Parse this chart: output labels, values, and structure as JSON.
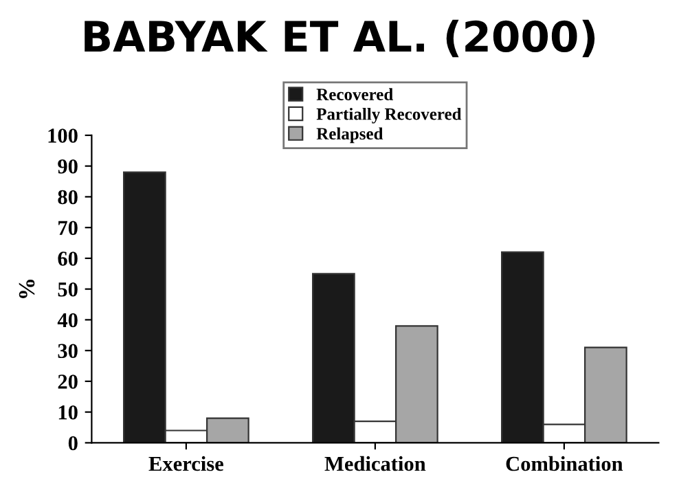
{
  "chart_data": {
    "type": "bar",
    "title": "BABYAK ET AL. (2000)",
    "ylabel": "%",
    "categories": [
      "Exercise",
      "Medication",
      "Combination"
    ],
    "series": [
      {
        "name": "Recovered",
        "color": "#1a1a1a",
        "values": [
          88,
          55,
          62
        ]
      },
      {
        "name": "Partially Recovered",
        "color": "#ffffff",
        "values": [
          4,
          7,
          6
        ]
      },
      {
        "name": "Relapsed",
        "color": "#a6a6a6",
        "values": [
          8,
          38,
          31
        ]
      }
    ],
    "ylim": [
      0,
      100
    ],
    "yticks": [
      0,
      10,
      20,
      30,
      40,
      50,
      60,
      70,
      80,
      90,
      100
    ],
    "grid": false,
    "legend": "top"
  }
}
